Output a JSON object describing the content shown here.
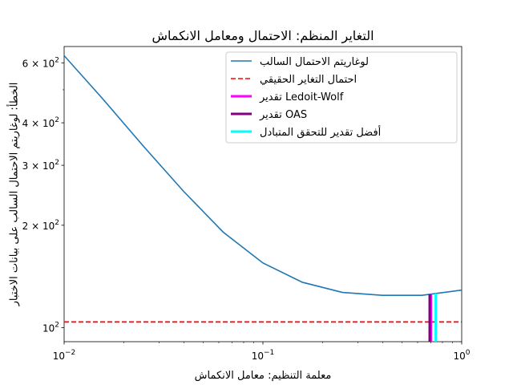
{
  "chart_data": {
    "type": "line",
    "title": "التغاير المنظم: الاحتمال ومعامل الانكماش",
    "xlabel": "معلمة التنظيم: معامل الانكماش",
    "ylabel": "الخطأ: لوغاريتم الاحتمال السالب على بيانات الاختبار",
    "xscale": "log",
    "yscale": "log",
    "xlim": [
      0.01,
      1.0
    ],
    "ylim": [
      91,
      670
    ],
    "grid": false,
    "legend_position": "top-right",
    "x_ticks": [
      {
        "value": 0.01,
        "base": "10",
        "exp": "−2"
      },
      {
        "value": 0.1,
        "base": "10",
        "exp": "−1"
      },
      {
        "value": 1.0,
        "base": "10",
        "exp": "0"
      }
    ],
    "y_ticks": [
      {
        "value": 100,
        "mant": "10",
        "base": "10",
        "exp": "2"
      },
      {
        "value": 200,
        "mant": "2 × 10",
        "base": "10",
        "exp": "2"
      },
      {
        "value": 300,
        "mant": "3 × 10",
        "base": "10",
        "exp": "2"
      },
      {
        "value": 400,
        "mant": "4 × 10",
        "base": "10",
        "exp": "2"
      },
      {
        "value": 600,
        "mant": "6 × 10",
        "base": "10",
        "exp": "2"
      }
    ],
    "series": [
      {
        "name": "لوغاريتم الاحتمال السالب",
        "kind": "line",
        "color": "#1f77b4",
        "x": [
          0.01,
          0.0158,
          0.0251,
          0.0398,
          0.0631,
          0.1,
          0.158,
          0.251,
          0.398,
          0.631,
          1.0
        ],
        "y": [
          630,
          467,
          341,
          252,
          191,
          155,
          136,
          127,
          124.5,
          124.5,
          129
        ]
      },
      {
        "name": "احتمال التغاير الحقيقي",
        "kind": "hline",
        "color": "#ff0000",
        "dashed": true,
        "y": 104
      },
      {
        "name": "تقدير Ledoit-Wolf",
        "kind": "vline",
        "color": "#ff00ff",
        "x": 0.7
      },
      {
        "name": "تقدير OAS",
        "kind": "vline",
        "color": "#800080",
        "x": 0.69
      },
      {
        "name": "أفضل تقدير للتحقق المتبادل",
        "kind": "vline",
        "color": "#00ffff",
        "x": 0.74
      }
    ]
  }
}
